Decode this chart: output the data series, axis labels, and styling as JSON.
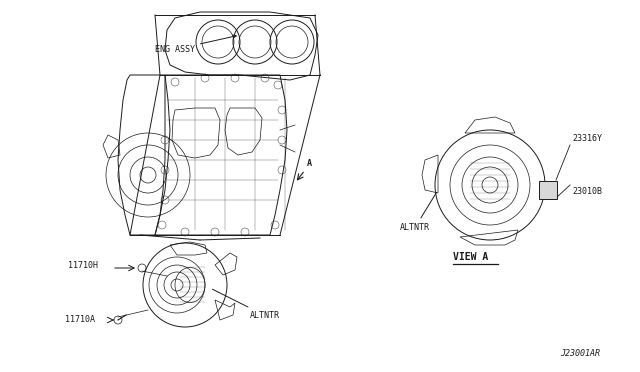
{
  "bg_color": "#ffffff",
  "line_color": "#1a1a1a",
  "fig_width": 6.4,
  "fig_height": 3.72,
  "dpi": 100,
  "labels": {
    "eng_assy": "ENG ASSY",
    "altntr_main": "ALTNTR",
    "altntr_view": "ALTNTR",
    "view_a": "VIEW A",
    "part_11710h": "11710H",
    "part_11710a": "11710A",
    "part_23316y": "23316Y",
    "part_23010b": "23010B",
    "part_a_label": "A",
    "diagram_id": "J23001AR"
  },
  "font_size": 6.0,
  "font_size_small": 5.5
}
